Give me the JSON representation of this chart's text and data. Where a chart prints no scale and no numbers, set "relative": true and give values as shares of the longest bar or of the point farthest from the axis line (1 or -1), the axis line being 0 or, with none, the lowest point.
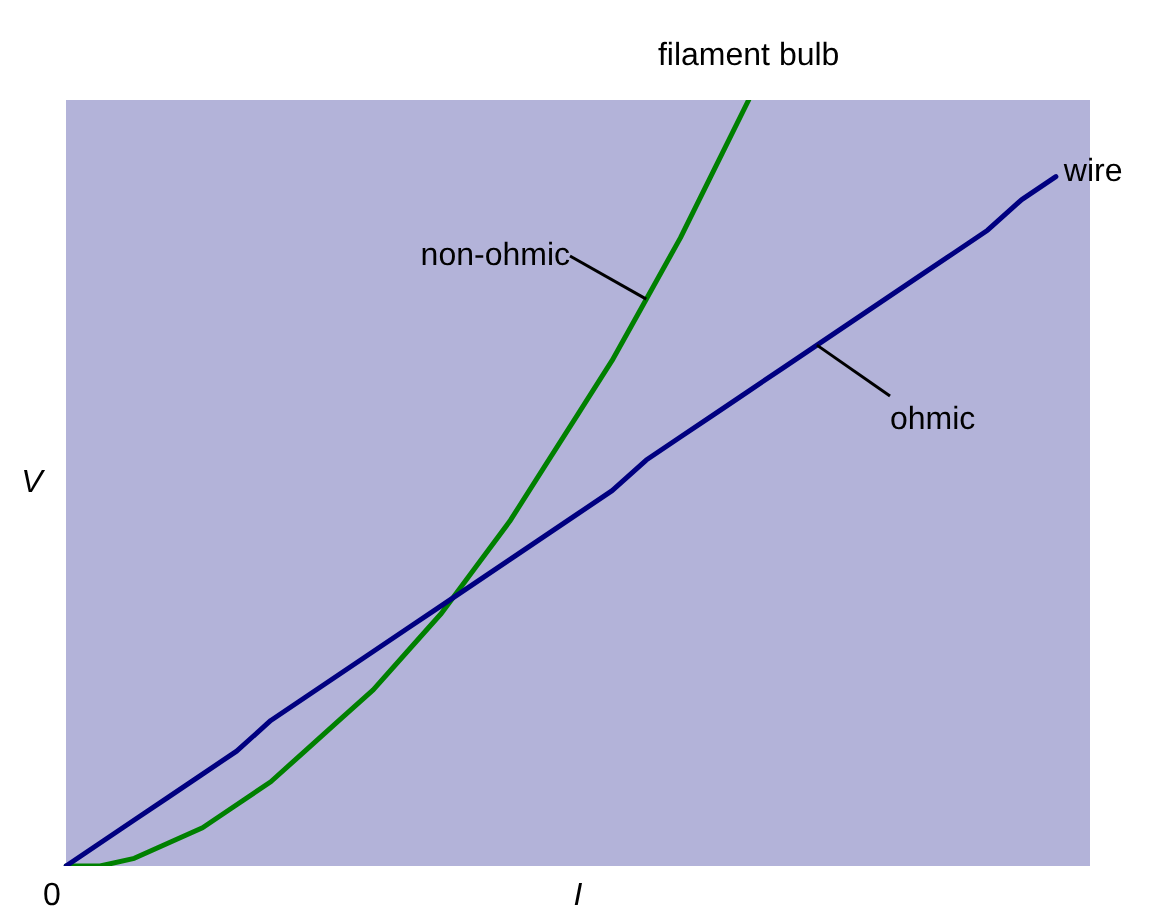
{
  "chart_data": {
    "type": "line",
    "relative": true,
    "xlabel": "I",
    "ylabel": "V",
    "categories": [
      null,
      null,
      null,
      null,
      null,
      null,
      null,
      null,
      null,
      null,
      null,
      null,
      null,
      null,
      null,
      null,
      null,
      null,
      null,
      null,
      null,
      null,
      null,
      null,
      null,
      null,
      null,
      null,
      null,
      null,
      null
    ],
    "series": [
      {
        "name": "wire",
        "color": "#000080",
        "values": [
          0,
          0.03,
          0.06,
          0.09,
          0.12,
          0.15,
          0.19,
          0.22,
          0.25,
          0.28,
          0.31,
          0.34,
          0.37,
          0.4,
          0.43,
          0.46,
          0.49,
          0.53,
          0.56,
          0.59,
          0.62,
          0.65,
          0.68,
          0.71,
          0.74,
          0.77,
          0.8,
          0.83,
          0.87,
          0.9,
          null
        ]
      },
      {
        "name": "filament bulb",
        "color": "#008000",
        "values": [
          0,
          0.0,
          0.01,
          0.03,
          0.05,
          0.08,
          0.11,
          0.15,
          0.19,
          0.23,
          0.28,
          0.33,
          0.39,
          0.45,
          0.52,
          0.59,
          0.66,
          0.74,
          0.82,
          0.91,
          1,
          null,
          null,
          null,
          null,
          null,
          null,
          null,
          null,
          null,
          null
        ]
      }
    ],
    "annotations": [
      "non-ohmic",
      "ohmic",
      "0"
    ],
    "legend": false,
    "marker": "none",
    "line_style": "solid"
  }
}
